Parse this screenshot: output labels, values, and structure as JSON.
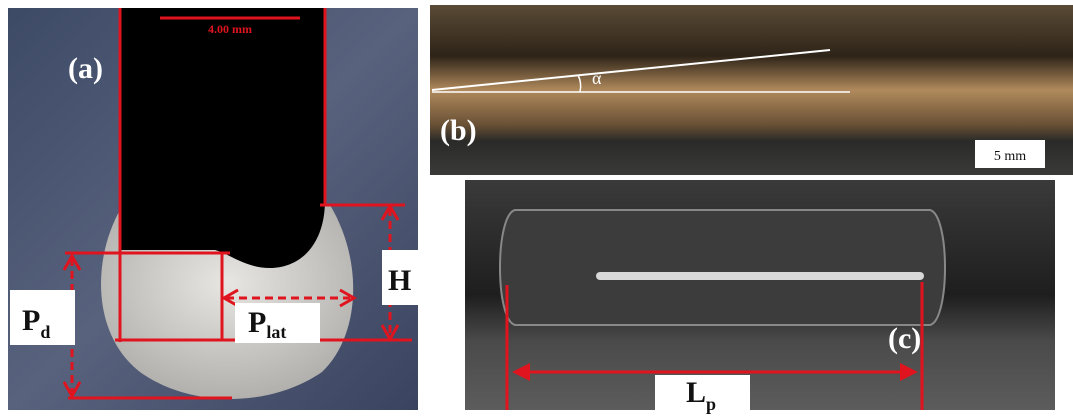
{
  "panels": [
    {
      "label": "(a)",
      "scale_bar": "4.00 mm",
      "annotations": [
        {
          "symbol": "P",
          "subscript": "d"
        },
        {
          "symbol": "P",
          "subscript": "lat"
        },
        {
          "symbol": "H"
        }
      ]
    },
    {
      "label": "(b)",
      "angle": "α",
      "scale_bar": "5 mm"
    },
    {
      "label": "(c)",
      "annotations": [
        {
          "symbol": "L",
          "subscript": "p"
        }
      ]
    }
  ]
}
